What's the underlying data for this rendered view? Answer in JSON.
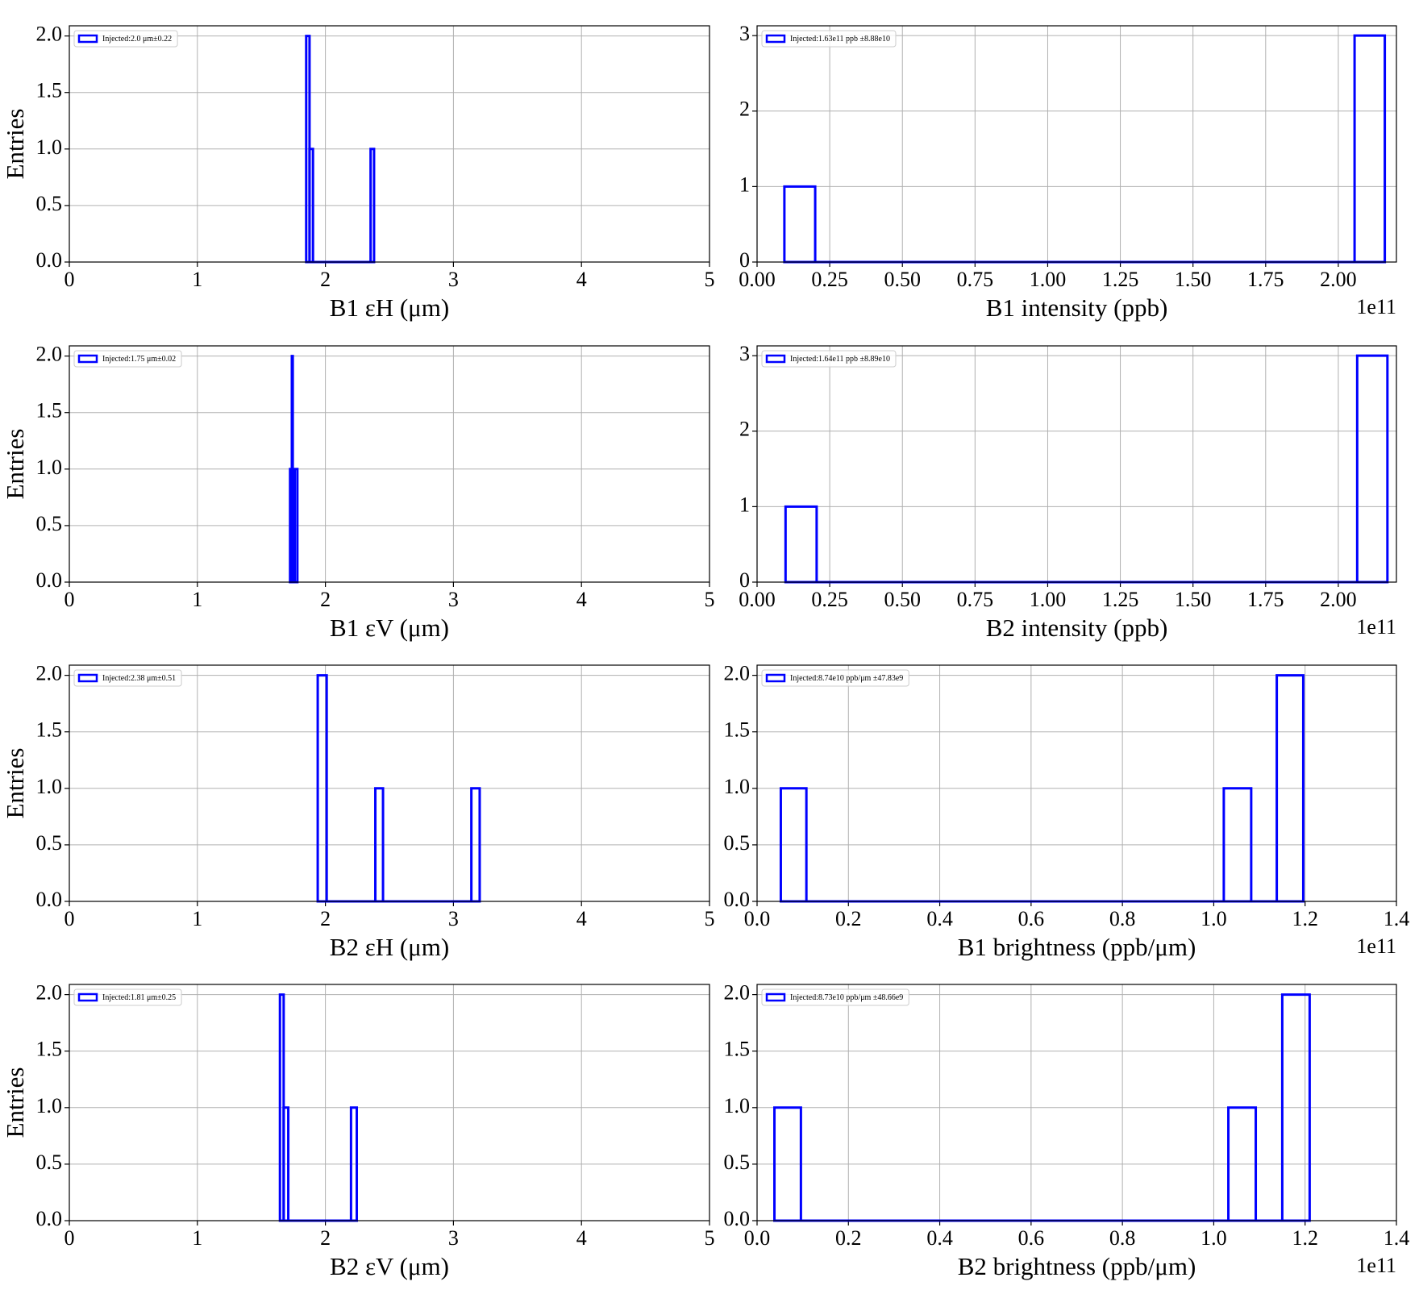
{
  "chart_data": [
    {
      "type": "histogram",
      "xlabel": "B1 εH (μm)",
      "ylabel": "Entries",
      "label": "Injected:2.0 μm±0.22",
      "color": "#0000ff",
      "legend": "upper left",
      "grid": true,
      "bins": [
        1.85,
        1.876,
        1.903,
        2.353,
        2.38
      ],
      "counts": [
        2,
        1,
        0,
        1
      ],
      "xlim": [
        0,
        5
      ],
      "xticks": [
        0,
        1,
        2,
        3,
        4,
        5
      ],
      "ylim": [
        0,
        2.09
      ],
      "yticks": [
        {
          "value": 0,
          "label": "0.0"
        },
        0.5,
        {
          "value": 1,
          "label": "1.0"
        },
        1.5,
        {
          "value": 2,
          "label": "2.0"
        }
      ]
    },
    {
      "type": "histogram",
      "xlabel": "B1 intensity (ppb)",
      "offset_text": "1e11",
      "label": "Injected:1.63e11 ppb ±8.88e10",
      "color": "#0000ff",
      "legend": "upper left",
      "grid": true,
      "bins": [
        0.094,
        0.2,
        2.056,
        2.16
      ],
      "counts": [
        1,
        0,
        3
      ],
      "xlim": [
        0,
        2.2
      ],
      "xticks": [
        {
          "value": 0,
          "label": "0.00"
        },
        0.25,
        {
          "value": 0.5,
          "label": "0.50"
        },
        0.75,
        {
          "value": 1,
          "label": "1.00"
        },
        1.25,
        {
          "value": 1.5,
          "label": "1.50"
        },
        1.75,
        {
          "value": 2,
          "label": "2.00"
        }
      ],
      "ylim": [
        0,
        3.13
      ],
      "yticks": [
        0,
        1,
        2,
        3
      ]
    },
    {
      "type": "histogram",
      "xlabel": "B1 εV (μm)",
      "ylabel": "Entries",
      "label": "Injected:1.75 μm±0.02",
      "color": "#0000ff",
      "legend": "upper left",
      "grid": true,
      "bins": [
        1.724,
        1.738,
        1.745,
        1.76,
        1.781
      ],
      "counts": [
        1,
        2,
        0,
        1
      ],
      "xlim": [
        0,
        5
      ],
      "xticks": [
        0,
        1,
        2,
        3,
        4,
        5
      ],
      "ylim": [
        0,
        2.09
      ],
      "yticks": [
        {
          "value": 0,
          "label": "0.0"
        },
        0.5,
        {
          "value": 1,
          "label": "1.0"
        },
        1.5,
        {
          "value": 2,
          "label": "2.0"
        }
      ]
    },
    {
      "type": "histogram",
      "xlabel": "B2 intensity (ppb)",
      "offset_text": "1e11",
      "label": "Injected:1.64e11 ppb ±8.89e10",
      "color": "#0000ff",
      "legend": "upper left",
      "grid": true,
      "bins": [
        0.098,
        0.205,
        2.065,
        2.169
      ],
      "counts": [
        1,
        0,
        3
      ],
      "xlim": [
        0,
        2.2
      ],
      "xticks": [
        {
          "value": 0,
          "label": "0.00"
        },
        0.25,
        {
          "value": 0.5,
          "label": "0.50"
        },
        0.75,
        {
          "value": 1,
          "label": "1.00"
        },
        1.25,
        {
          "value": 1.5,
          "label": "1.50"
        },
        1.75,
        {
          "value": 2,
          "label": "2.00"
        }
      ],
      "ylim": [
        0,
        3.13
      ],
      "yticks": [
        0,
        1,
        2,
        3
      ]
    },
    {
      "type": "histogram",
      "xlabel": "B2 εH (μm)",
      "ylabel": "Entries",
      "label": "Injected:2.38 μm±0.51",
      "color": "#0000ff",
      "legend": "upper left",
      "grid": true,
      "bins": [
        1.94,
        2.01,
        2.39,
        2.45,
        3.14,
        3.205
      ],
      "counts": [
        2,
        0,
        1,
        0,
        1
      ],
      "xlim": [
        0,
        5
      ],
      "xticks": [
        0,
        1,
        2,
        3,
        4,
        5
      ],
      "ylim": [
        0,
        2.09
      ],
      "yticks": [
        {
          "value": 0,
          "label": "0.0"
        },
        0.5,
        {
          "value": 1,
          "label": "1.0"
        },
        1.5,
        {
          "value": 2,
          "label": "2.0"
        }
      ]
    },
    {
      "type": "histogram",
      "xlabel": "B1 brightness (ppb/μm)",
      "offset_text": "1e11",
      "label": "Injected:8.74e10 ppb/μm ±47.83e9",
      "color": "#0000ff",
      "legend": "upper left",
      "grid": true,
      "bins": [
        0.052,
        0.108,
        1.022,
        1.082,
        1.138,
        1.196
      ],
      "counts": [
        1,
        0,
        1,
        0,
        2
      ],
      "xlim": [
        0,
        1.4
      ],
      "xticks": [
        {
          "value": 0,
          "label": "0.0"
        },
        0.2,
        0.4,
        0.6,
        0.8,
        {
          "value": 1,
          "label": "1.0"
        },
        1.2,
        1.4
      ],
      "ylim": [
        0,
        2.09
      ],
      "yticks": [
        {
          "value": 0,
          "label": "0.0"
        },
        0.5,
        {
          "value": 1,
          "label": "1.0"
        },
        1.5,
        {
          "value": 2,
          "label": "2.0"
        }
      ]
    },
    {
      "type": "histogram",
      "xlabel": "B2 εV (μm)",
      "ylabel": "Entries",
      "label": "Injected:1.81 μm±0.25",
      "color": "#0000ff",
      "legend": "upper left",
      "grid": true,
      "bins": [
        1.645,
        1.674,
        1.71,
        2.2,
        2.245
      ],
      "counts": [
        2,
        1,
        0,
        1
      ],
      "xlim": [
        0,
        5
      ],
      "xticks": [
        0,
        1,
        2,
        3,
        4,
        5
      ],
      "ylim": [
        0,
        2.09
      ],
      "yticks": [
        {
          "value": 0,
          "label": "0.0"
        },
        0.5,
        {
          "value": 1,
          "label": "1.0"
        },
        1.5,
        {
          "value": 2,
          "label": "2.0"
        }
      ]
    },
    {
      "type": "histogram",
      "xlabel": "B2 brightness (ppb/μm)",
      "offset_text": "1e11",
      "label": "Injected:8.73e10 ppb/μm ±48.66e9",
      "color": "#0000ff",
      "legend": "upper left",
      "grid": true,
      "bins": [
        0.038,
        0.096,
        1.032,
        1.092,
        1.15,
        1.21
      ],
      "counts": [
        1,
        0,
        1,
        0,
        2
      ],
      "xlim": [
        0,
        1.4
      ],
      "xticks": [
        {
          "value": 0,
          "label": "0.0"
        },
        0.2,
        0.4,
        0.6,
        0.8,
        {
          "value": 1,
          "label": "1.0"
        },
        1.2,
        1.4
      ],
      "ylim": [
        0,
        2.09
      ],
      "yticks": [
        {
          "value": 0,
          "label": "0.0"
        },
        0.5,
        {
          "value": 1,
          "label": "1.0"
        },
        1.5,
        {
          "value": 2,
          "label": "2.0"
        }
      ]
    }
  ]
}
